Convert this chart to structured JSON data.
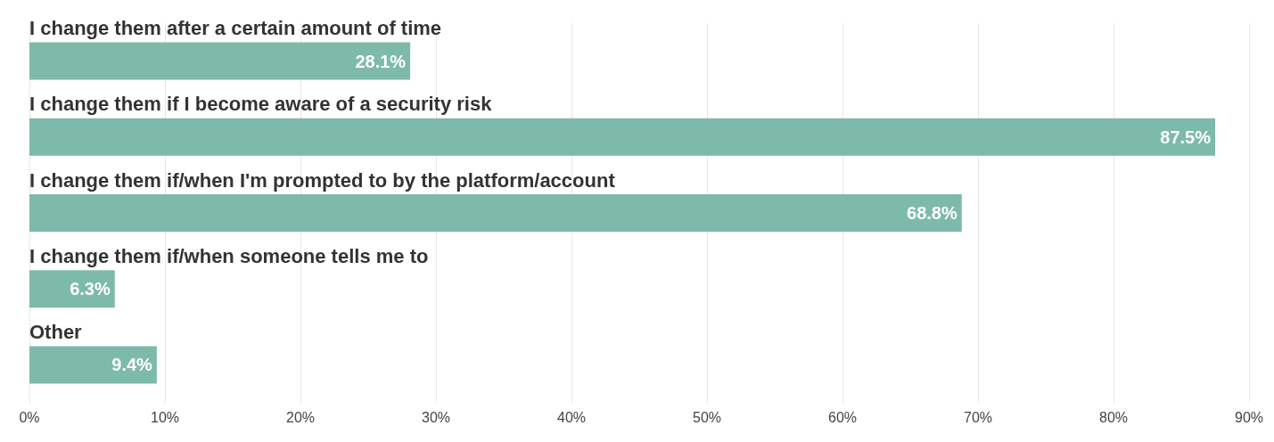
{
  "chart_data": {
    "type": "bar",
    "orientation": "horizontal",
    "categories": [
      "I change them after a certain amount of time",
      "I change them if I become aware of a security risk",
      "I change them if/when I'm prompted to by the platform/account",
      "I change them if/when someone tells me to",
      "Other"
    ],
    "values": [
      28.1,
      87.5,
      68.8,
      6.3,
      9.4
    ],
    "value_labels": [
      "28.1%",
      "87.5%",
      "68.8%",
      "6.3%",
      "9.4%"
    ],
    "color": "#7dbaaa",
    "xlim": [
      0,
      90
    ],
    "xticks": [
      {
        "value": 0,
        "label": "0%"
      },
      {
        "value": 10,
        "label": "10%"
      },
      {
        "value": 20,
        "label": "20%"
      },
      {
        "value": 30,
        "label": "30%"
      },
      {
        "value": 40,
        "label": "40%"
      },
      {
        "value": 50,
        "label": "50%"
      },
      {
        "value": 60,
        "label": "60%"
      },
      {
        "value": 70,
        "label": "70%"
      },
      {
        "value": 80,
        "label": "80%"
      },
      {
        "value": 90,
        "label": "90%"
      }
    ],
    "grid": "x"
  }
}
